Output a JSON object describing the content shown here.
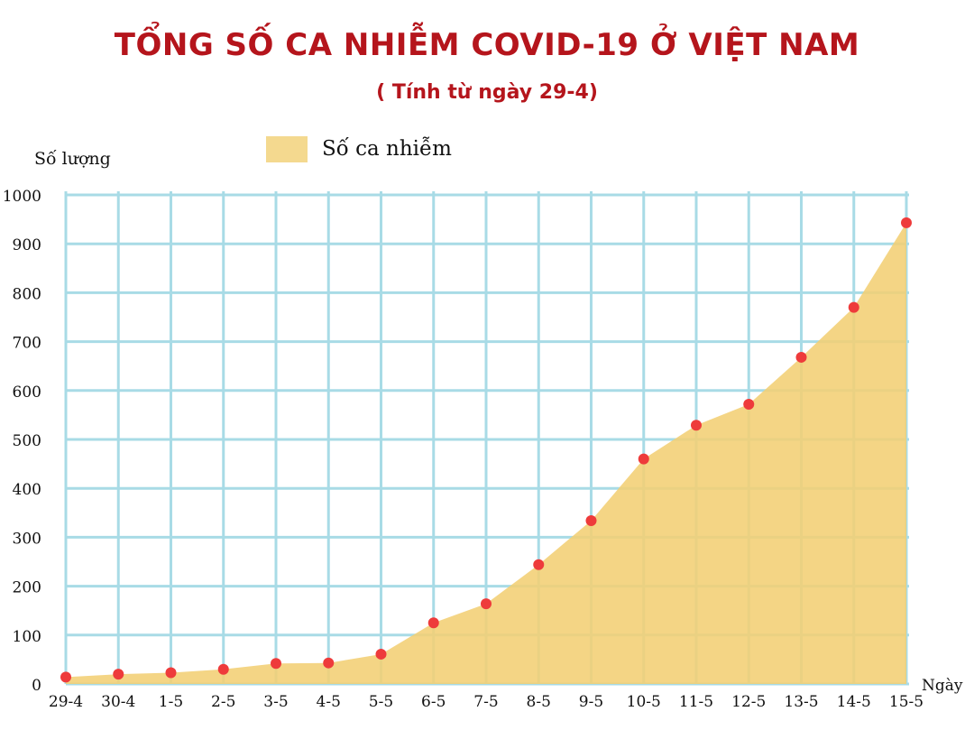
{
  "title": "TỔNG SỐ CA NHIỄM COVID-19 Ở VIỆT NAM",
  "subtitle": "( Tính từ ngày 29-4)",
  "chart_data": {
    "type": "area",
    "title": "TỔNG SỐ CA NHIỄM COVID-19 Ở VIỆT NAM",
    "subtitle": "( Tính từ ngày 29-4)",
    "xlabel": "Ngày",
    "ylabel": "Số lượng",
    "categories": [
      "29-4",
      "30-4",
      "1-5",
      "2-5",
      "3-5",
      "4-5",
      "5-5",
      "6-5",
      "7-5",
      "8-5",
      "9-5",
      "10-5",
      "11-5",
      "12-5",
      "13-5",
      "14-5",
      "15-5"
    ],
    "series": [
      {
        "name": "Số ca nhiễm",
        "values": [
          14,
          20,
          23,
          30,
          42,
          43,
          61,
          125,
          164,
          244,
          334,
          460,
          529,
          572,
          668,
          770,
          943
        ]
      }
    ],
    "ylim": [
      0,
      1000
    ],
    "yticks": [
      0,
      100,
      200,
      300,
      400,
      500,
      600,
      700,
      800,
      900,
      1000
    ],
    "grid": true,
    "legend_position": "top-left",
    "colors": {
      "area_fill": "#f2cf74",
      "marker": "#ee3b3b",
      "grid": "#a8dbe6",
      "title": "#b5151c"
    }
  }
}
